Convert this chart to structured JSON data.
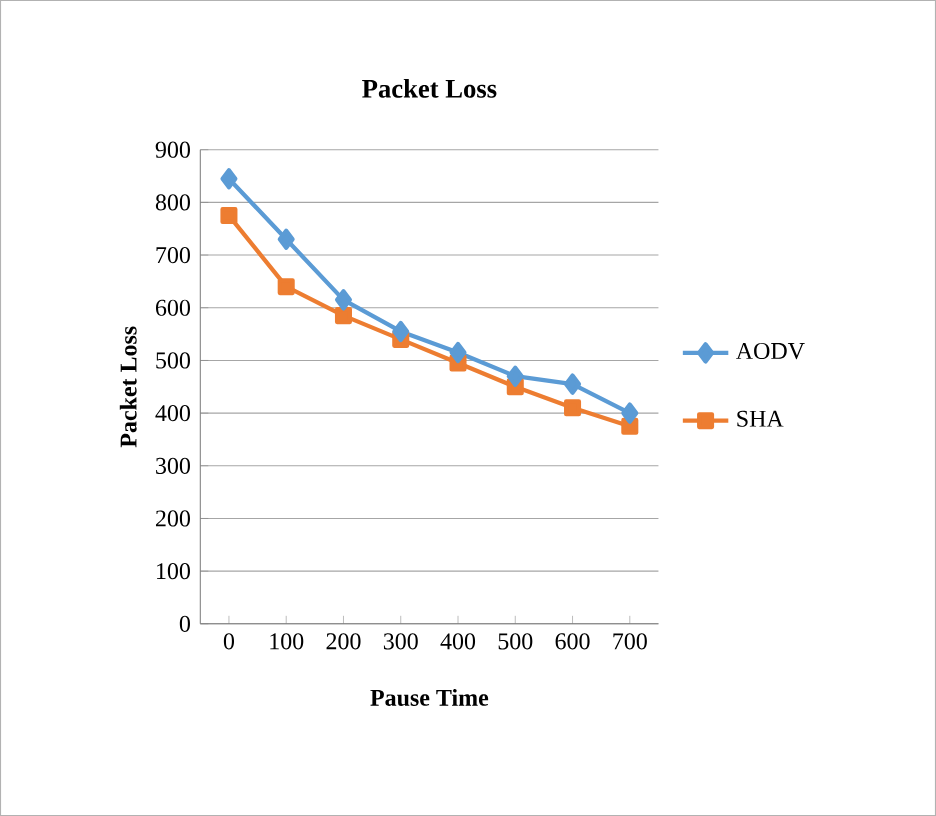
{
  "chart_data": {
    "type": "line",
    "title": "Packet Loss",
    "xlabel": "Pause Time",
    "ylabel": "Packet Loss",
    "categories": [
      "0",
      "100",
      "200",
      "300",
      "400",
      "500",
      "600",
      "700"
    ],
    "series": [
      {
        "name": "AODV",
        "color": "#5b9bd5",
        "marker": "diamond",
        "values": [
          845,
          730,
          615,
          555,
          515,
          470,
          455,
          400
        ]
      },
      {
        "name": "SHA",
        "color": "#ed7d31",
        "marker": "square",
        "values": [
          775,
          640,
          585,
          540,
          495,
          450,
          410,
          375
        ]
      }
    ],
    "ylim": [
      0,
      900
    ],
    "yticks": [
      0,
      100,
      200,
      300,
      400,
      500,
      600,
      700,
      800,
      900
    ],
    "grid": "y",
    "legend": "right"
  }
}
